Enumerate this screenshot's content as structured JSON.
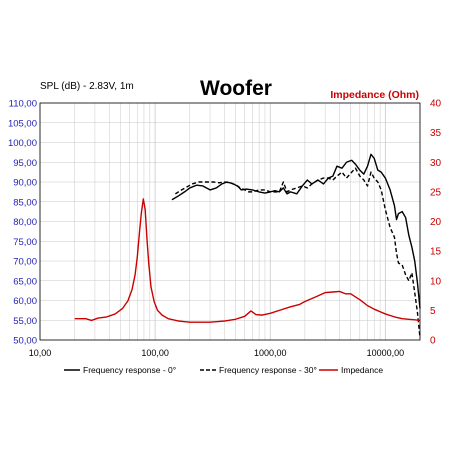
{
  "chart_data": {
    "type": "line",
    "title": "Woofer",
    "ylabel_left": "SPL (dB) - 2.83V, 1m",
    "ylabel_right": "Impedance (Ohm)",
    "x_scale": "log",
    "xlim": [
      10,
      20000
    ],
    "ylim_left": [
      50,
      110
    ],
    "ylim_right": [
      0,
      40
    ],
    "x_tick_values": [
      10,
      100,
      1000,
      10000
    ],
    "x_tick_labels": [
      "10,00",
      "100,00",
      "1000,00",
      "10000,00"
    ],
    "y_left_ticks": [
      50,
      55,
      60,
      65,
      70,
      75,
      80,
      85,
      90,
      95,
      100,
      105,
      110
    ],
    "y_left_tick_labels": [
      "50,00",
      "55,00",
      "60,00",
      "65,00",
      "70,00",
      "75,00",
      "80,00",
      "85,00",
      "90,00",
      "95,00",
      "100,00",
      "105,00",
      "110,00"
    ],
    "y_right_ticks": [
      0,
      5,
      10,
      15,
      20,
      25,
      30,
      35,
      40
    ],
    "y_right_tick_labels": [
      "0",
      "5",
      "10",
      "15",
      "20",
      "25",
      "30",
      "35",
      "40"
    ],
    "grid": true,
    "legend_position": "bottom",
    "colors": {
      "left_axis": "#1f1fb4",
      "right_axis": "#cc0000",
      "fr0": "#000000",
      "fr30": "#000000",
      "impedance": "#cc0000",
      "grid": "#c8c8c8"
    },
    "series": [
      {
        "name": "Frequency response - 0°",
        "axis": "left",
        "style": "solid",
        "points": [
          [
            140,
            85.5
          ],
          [
            160,
            86.5
          ],
          [
            180,
            87.5
          ],
          [
            200,
            88.5
          ],
          [
            230,
            89.2
          ],
          [
            260,
            89.0
          ],
          [
            300,
            88.0
          ],
          [
            340,
            88.5
          ],
          [
            380,
            89.5
          ],
          [
            420,
            90.0
          ],
          [
            470,
            89.6
          ],
          [
            520,
            89.0
          ],
          [
            560,
            88.0
          ],
          [
            620,
            88.2
          ],
          [
            700,
            88.0
          ],
          [
            800,
            87.5
          ],
          [
            900,
            87.2
          ],
          [
            1000,
            87.5
          ],
          [
            1100,
            87.8
          ],
          [
            1200,
            87.5
          ],
          [
            1300,
            88.5
          ],
          [
            1400,
            87.0
          ],
          [
            1500,
            87.5
          ],
          [
            1700,
            87.0
          ],
          [
            1900,
            89.0
          ],
          [
            2100,
            90.5
          ],
          [
            2300,
            89.5
          ],
          [
            2600,
            90.5
          ],
          [
            2900,
            89.5
          ],
          [
            3200,
            91.0
          ],
          [
            3500,
            91.5
          ],
          [
            3800,
            94.0
          ],
          [
            4200,
            93.5
          ],
          [
            4600,
            95.0
          ],
          [
            5100,
            95.5
          ],
          [
            5500,
            94.5
          ],
          [
            6000,
            93.0
          ],
          [
            6500,
            92.0
          ],
          [
            7000,
            94.0
          ],
          [
            7500,
            97.0
          ],
          [
            8000,
            96.0
          ],
          [
            8600,
            93.0
          ],
          [
            9200,
            92.5
          ],
          [
            10000,
            91.0
          ],
          [
            11000,
            88.0
          ],
          [
            12000,
            84.0
          ],
          [
            12500,
            80.5
          ],
          [
            13000,
            82.0
          ],
          [
            14000,
            82.5
          ],
          [
            15000,
            81.0
          ],
          [
            16000,
            76.5
          ],
          [
            17000,
            73.5
          ],
          [
            18000,
            70.0
          ],
          [
            19000,
            64.5
          ],
          [
            20000,
            58.0
          ]
        ]
      },
      {
        "name": "Frequency response - 30°",
        "axis": "left",
        "style": "dashed",
        "points": [
          [
            150,
            87.0
          ],
          [
            170,
            88.0
          ],
          [
            190,
            88.8
          ],
          [
            210,
            89.5
          ],
          [
            240,
            90.0
          ],
          [
            280,
            90.0
          ],
          [
            320,
            90.0
          ],
          [
            360,
            89.8
          ],
          [
            400,
            90.0
          ],
          [
            450,
            89.8
          ],
          [
            500,
            89.3
          ],
          [
            550,
            88.5
          ],
          [
            600,
            88.0
          ],
          [
            650,
            87.5
          ],
          [
            700,
            87.5
          ],
          [
            800,
            88.0
          ],
          [
            900,
            88.0
          ],
          [
            1000,
            87.5
          ],
          [
            1100,
            87.5
          ],
          [
            1200,
            87.5
          ],
          [
            1300,
            90.0
          ],
          [
            1400,
            87.5
          ],
          [
            1500,
            88.0
          ],
          [
            1700,
            88.5
          ],
          [
            1900,
            89.0
          ],
          [
            2100,
            88.5
          ],
          [
            2300,
            89.5
          ],
          [
            2600,
            90.5
          ],
          [
            2900,
            91.0
          ],
          [
            3200,
            91.0
          ],
          [
            3500,
            90.5
          ],
          [
            3800,
            91.5
          ],
          [
            4200,
            92.5
          ],
          [
            4600,
            91.0
          ],
          [
            5100,
            92.5
          ],
          [
            5500,
            93.5
          ],
          [
            6000,
            91.5
          ],
          [
            6500,
            90.5
          ],
          [
            7000,
            89.0
          ],
          [
            7500,
            92.5
          ],
          [
            8000,
            91.0
          ],
          [
            8600,
            90.0
          ],
          [
            9200,
            88.0
          ],
          [
            10000,
            83.0
          ],
          [
            11000,
            78.5
          ],
          [
            12000,
            76.0
          ],
          [
            12500,
            72.0
          ],
          [
            13000,
            69.5
          ],
          [
            14000,
            69.0
          ],
          [
            15000,
            66.5
          ],
          [
            16000,
            65.0
          ],
          [
            17000,
            67.0
          ],
          [
            18000,
            62.0
          ],
          [
            19000,
            57.0
          ],
          [
            20000,
            50.5
          ]
        ]
      },
      {
        "name": "Impedance",
        "axis": "right",
        "style": "solid",
        "points": [
          [
            20,
            3.6
          ],
          [
            25,
            3.6
          ],
          [
            28,
            3.3
          ],
          [
            32,
            3.7
          ],
          [
            38,
            3.9
          ],
          [
            45,
            4.4
          ],
          [
            52,
            5.3
          ],
          [
            58,
            6.6
          ],
          [
            63,
            8.5
          ],
          [
            67,
            11.0
          ],
          [
            70,
            14.0
          ],
          [
            73,
            18.0
          ],
          [
            76,
            21.5
          ],
          [
            79,
            23.8
          ],
          [
            82,
            22.0
          ],
          [
            85,
            17.0
          ],
          [
            88,
            13.0
          ],
          [
            92,
            9.0
          ],
          [
            98,
            6.5
          ],
          [
            105,
            5.0
          ],
          [
            115,
            4.2
          ],
          [
            130,
            3.6
          ],
          [
            160,
            3.2
          ],
          [
            200,
            3.0
          ],
          [
            300,
            3.0
          ],
          [
            400,
            3.2
          ],
          [
            500,
            3.5
          ],
          [
            600,
            4.0
          ],
          [
            680,
            4.9
          ],
          [
            750,
            4.3
          ],
          [
            850,
            4.2
          ],
          [
            1000,
            4.5
          ],
          [
            1200,
            5.0
          ],
          [
            1500,
            5.6
          ],
          [
            1800,
            6.0
          ],
          [
            2000,
            6.5
          ],
          [
            2500,
            7.3
          ],
          [
            3000,
            8.0
          ],
          [
            3500,
            8.1
          ],
          [
            4000,
            8.2
          ],
          [
            4500,
            7.8
          ],
          [
            5000,
            7.8
          ],
          [
            6000,
            6.8
          ],
          [
            7000,
            5.8
          ],
          [
            8000,
            5.2
          ],
          [
            10000,
            4.4
          ],
          [
            12000,
            3.9
          ],
          [
            14000,
            3.6
          ],
          [
            16000,
            3.5
          ],
          [
            18000,
            3.4
          ],
          [
            20000,
            3.3
          ]
        ]
      }
    ]
  }
}
